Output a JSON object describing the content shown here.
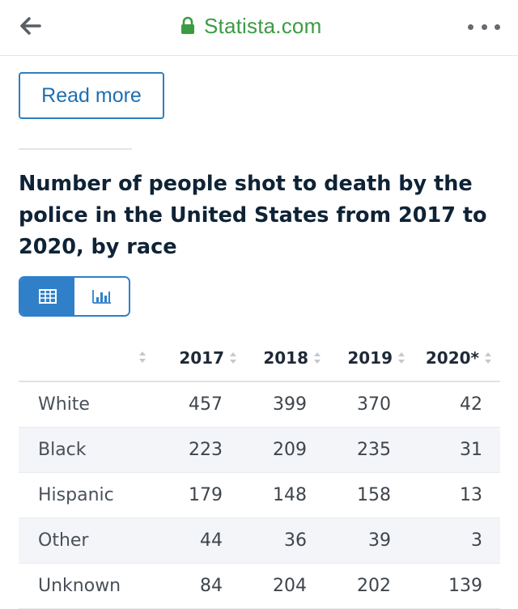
{
  "browser": {
    "domain": "Statista.com",
    "back_icon": "arrow-left-icon",
    "lock_icon": "lock-icon",
    "menu_icon": "more-dots-icon",
    "accent_color": "#3b9b43"
  },
  "page": {
    "read_more_label": "Read more",
    "title": "Number of people shot to death by the police in the United States from 2017 to 2020, by race",
    "view_toggle": {
      "options": [
        "table-view",
        "chart-view"
      ],
      "selected": "table-view",
      "accent_color": "#2f80c9"
    }
  },
  "table": {
    "columns": [
      "2017",
      "2018",
      "2019",
      "2020*"
    ],
    "rows": [
      {
        "label": "White",
        "values": [
          "457",
          "399",
          "370",
          "42"
        ]
      },
      {
        "label": "Black",
        "values": [
          "223",
          "209",
          "235",
          "31"
        ]
      },
      {
        "label": "Hispanic",
        "values": [
          "179",
          "148",
          "158",
          "13"
        ]
      },
      {
        "label": "Other",
        "values": [
          "44",
          "36",
          "39",
          "3"
        ]
      },
      {
        "label": "Unknown",
        "values": [
          "84",
          "204",
          "202",
          "139"
        ]
      }
    ]
  }
}
